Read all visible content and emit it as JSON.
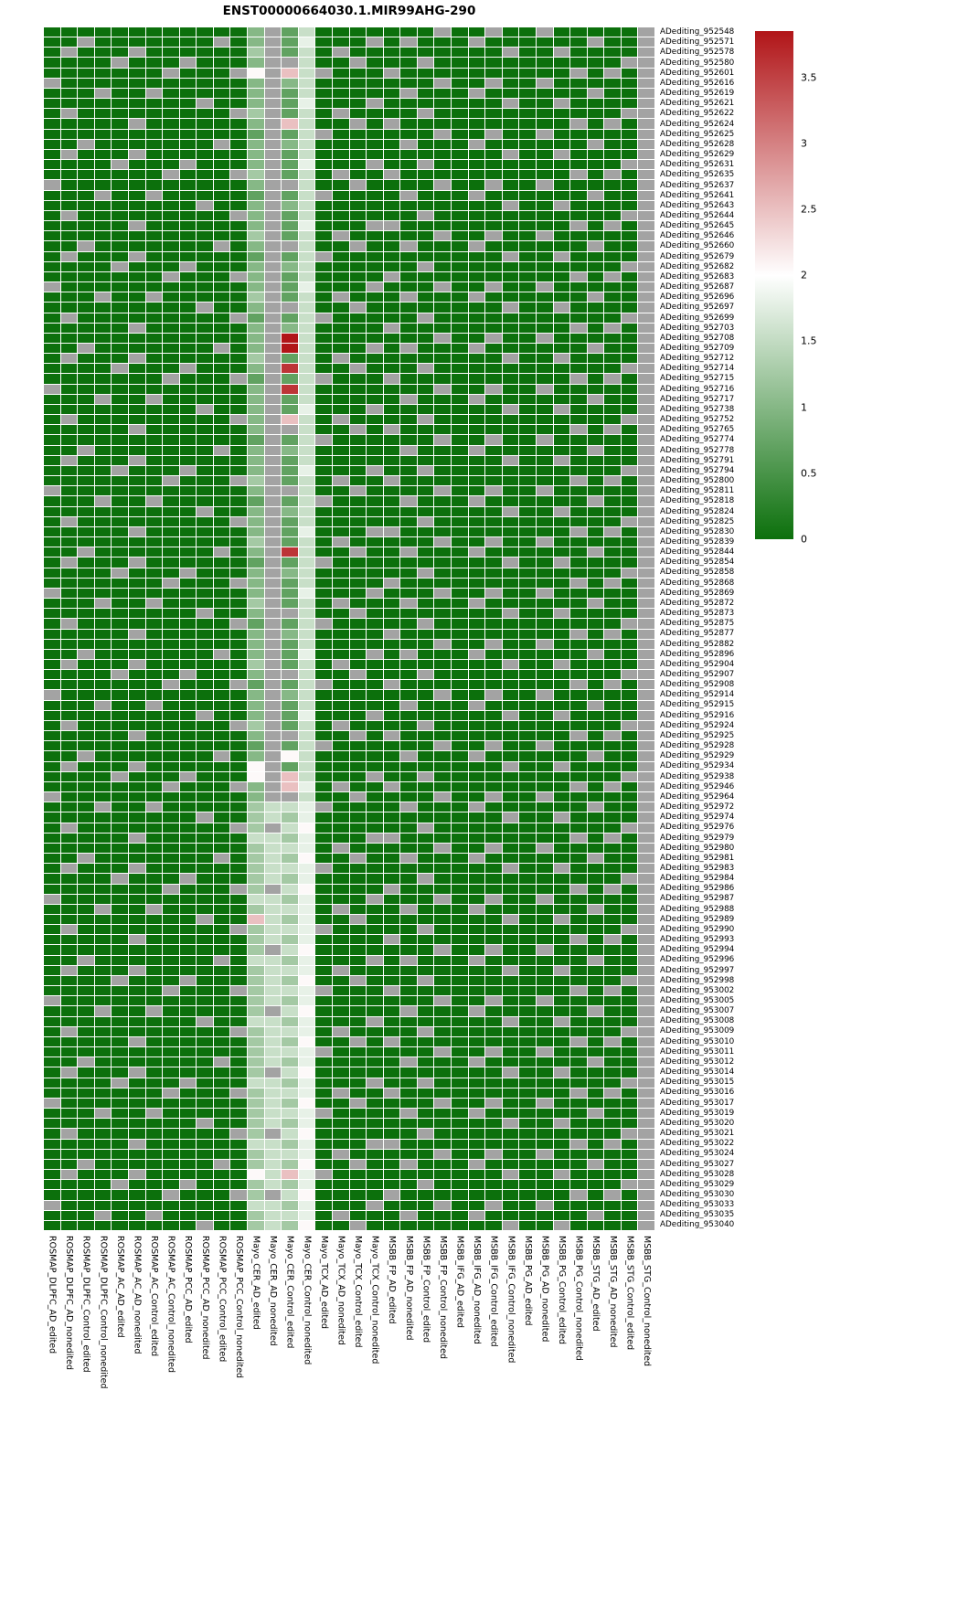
{
  "title": "ENST00000664030.1.MIR99AHG-290",
  "chart_data": {
    "type": "heatmap",
    "title": "ENST00000664030.1.MIR99AHG-290",
    "legend_position": "right",
    "na_color": "#a3a3a3",
    "colorscale": {
      "stops": [
        [
          0,
          "#0c700c"
        ],
        [
          2,
          "#ffffff"
        ],
        [
          3.85,
          "#b11518"
        ]
      ]
    },
    "legend": {
      "min": 0,
      "max": 3.85,
      "ticks": [
        3.5,
        3,
        2.5,
        2,
        1.5,
        1,
        0.5,
        0
      ]
    },
    "value_map": {
      "G": 0,
      "a": 0.7,
      "b": 1.0,
      "c": 1.25,
      "d": 1.55,
      "e": 1.8,
      "w": 2.05,
      "p": 2.5,
      "r": 3.6,
      "s": 3.85,
      "N": null
    },
    "columns": [
      "ROSMAP_DLPFC_AD_edited",
      "ROSMAP_DLPFC_AD_nonedited",
      "ROSMAP_DLPFC_Control_edited",
      "ROSMAP_DLPFC_Control_nonedited",
      "ROSMAP_AC_AD_edited",
      "ROSMAP_AC_AD_nonedited",
      "ROSMAP_AC_Control_edited",
      "ROSMAP_AC_Control_nonedited",
      "ROSMAP_PCC_AD_edited",
      "ROSMAP_PCC_AD_nonedited",
      "ROSMAP_PCC_Control_edited",
      "ROSMAP_PCC_Control_nonedited",
      "Mayo_CER_AD_edited",
      "Mayo_CER_AD_nonedited",
      "Mayo_CER_Control_edited",
      "Mayo_CER_Control_nonedited",
      "Mayo_TCX_AD_edited",
      "Mayo_TCX_AD_nonedited",
      "Mayo_TCX_Control_edited",
      "Mayo_TCX_Control_nonedited",
      "MSBB_FP_AD_edited",
      "MSBB_FP_AD_nonedited",
      "MSBB_FP_Control_edited",
      "MSBB_FP_Control_nonedited",
      "MSBB_IFG_AD_edited",
      "MSBB_IFG_AD_nonedited",
      "MSBB_IFG_Control_edited",
      "MSBB_IFG_Control_nonedited",
      "MSBB_PG_AD_edited",
      "MSBB_PG_AD_nonedited",
      "MSBB_PG_Control_edited",
      "MSBB_PG_Control_nonedited",
      "MSBB_STG_AD_edited",
      "MSBB_STG_AD_nonedited",
      "MSBB_STG_Control_edited",
      "MSBB_STG_Control_nonedited"
    ],
    "rows": [
      "ADediting_952548",
      "ADediting_952571",
      "ADediting_952578",
      "ADediting_952580",
      "ADediting_952601",
      "ADediting_952616",
      "ADediting_952619",
      "ADediting_952621",
      "ADediting_952622",
      "ADediting_952624",
      "ADediting_952625",
      "ADediting_952628",
      "ADediting_952629",
      "ADediting_952631",
      "ADediting_952635",
      "ADediting_952637",
      "ADediting_952641",
      "ADediting_952643",
      "ADediting_952644",
      "ADediting_952645",
      "ADediting_952646",
      "ADediting_952660",
      "ADediting_952679",
      "ADediting_952682",
      "ADediting_952683",
      "ADediting_952687",
      "ADediting_952696",
      "ADediting_952697",
      "ADediting_952699",
      "ADediting_952703",
      "ADediting_952708",
      "ADediting_952709",
      "ADediting_952712",
      "ADediting_952714",
      "ADediting_952715",
      "ADediting_952716",
      "ADediting_952717",
      "ADediting_952738",
      "ADediting_952752",
      "ADediting_952765",
      "ADediting_952774",
      "ADediting_952778",
      "ADediting_952791",
      "ADediting_952794",
      "ADediting_952800",
      "ADediting_952811",
      "ADediting_952818",
      "ADediting_952824",
      "ADediting_952825",
      "ADediting_952830",
      "ADediting_952839",
      "ADediting_952844",
      "ADediting_952854",
      "ADediting_952858",
      "ADediting_952868",
      "ADediting_952869",
      "ADediting_952872",
      "ADediting_952873",
      "ADediting_952875",
      "ADediting_952877",
      "ADediting_952882",
      "ADediting_952896",
      "ADediting_952904",
      "ADediting_952907",
      "ADediting_952908",
      "ADediting_952914",
      "ADediting_952915",
      "ADediting_952916",
      "ADediting_952924",
      "ADediting_952925",
      "ADediting_952928",
      "ADediting_952929",
      "ADediting_952934",
      "ADediting_952938",
      "ADediting_952946",
      "ADediting_952964",
      "ADediting_952972",
      "ADediting_952974",
      "ADediting_952976",
      "ADediting_952979",
      "ADediting_952980",
      "ADediting_952981",
      "ADediting_952983",
      "ADediting_952984",
      "ADediting_952986",
      "ADediting_952987",
      "ADediting_952988",
      "ADediting_952989",
      "ADediting_952990",
      "ADediting_952993",
      "ADediting_952994",
      "ADediting_952996",
      "ADediting_952997",
      "ADediting_952998",
      "ADediting_953002",
      "ADediting_953005",
      "ADediting_953007",
      "ADediting_953008",
      "ADediting_953009",
      "ADediting_953010",
      "ADediting_953011",
      "ADediting_953012",
      "ADediting_953014",
      "ADediting_953015",
      "ADediting_953016",
      "ADediting_953017",
      "ADediting_953019",
      "ADediting_953020",
      "ADediting_953021",
      "ADediting_953022",
      "ADediting_953024",
      "ADediting_953027",
      "ADediting_953028",
      "ADediting_953029",
      "ADediting_953030",
      "ADediting_953033",
      "ADediting_953035",
      "ADediting_953040"
    ],
    "matrix": [
      "GGGGGGGGGGGGbNadGGGGGGGNGGNGGNGGGGGN",
      "GGNGGGGGGGNGbNaeGGGNGNGGGNGGGGGGNGGN",
      "GNGGGNGGGGGGcNadGNGGGGGGGGGNGGNGGGGN",
      "GGGGNGGGNGGGbNNdGGNGGGNGGGGGGGGGGGNN",
      "GGGGGGGNGGGNwNpdNGGGNGGGGGGGGGGNGNGN",
      "NGGGGGGGGGGGbNbdGGGGGGGNGGNGGNGGGGGN",
      "GGGNGGNGGGGGbNadGGGGGNGGGNGGGGGGNGGN",
      "GGGGGGGGGNGGbNaeGGGNGGGGGGGNGGNGGGGN",
      "GNGGGGGGGGGNcNadGNGGGGNGGGGGGGGGGGNN",
      "GGGGGNGGGGGGbNpdGGNGNGGGGGGGGGGNGNGN",
      "GGGGGGGGGGGGaNadNGGGGGGNGGNGGNGGGGGN",
      "GGNGGGGGGGNGbNbdGGGGGNGGGNGGGGGGNGGN",
      "GNGGGNGGGGGGbNadGGGGGGGGGGGNGGNGGGGN",
      "GGGGNGGGNGGGbNaeGGGNGGNGGGGGGGGGGGNN",
      "GGGGGGGNGGGNcNadGNGGNGGGGGGGGGGNGNGN",
      "NGGGGGGGGGGGbNNdGGNGGGGNGGNGGNGGGGGN",
      "GGGNGGNGGGGGaNadNGGGGNGGGNGGGGGGNGGN",
      "GGGGGGGGGNGGbNbdGGGGGGGGGGGNGGNGGGGN",
      "GNGGGGGGGGGNbNadGGGGGGNGGGGGGGGGGGNN",
      "GGGGGNGGGGGGbNaeGGGNNGGGGGGGGGGNGNGN",
      "GGGGGGGGGGGGcNadGNGGGGGNGGNGGNGGGGGN",
      "GGNGGGGGGGNGbNNdGGNGGNGGGNGGGGGGNGGN",
      "GNGGGNGGGGGGaNadNGGGGGGGGGGNGGNGGGGN",
      "GGGGNGGGNGGGbNbdGGGGGGNGGGGGGGGGGGNN",
      "GGGGGGGNGGGNbNadGGGGNGGGGGGGGGGNGNGN",
      "NGGGGGGGGGGGbNaeGGGNGGGNGGNGGNGGGGGN",
      "GGGNGGNGGGGGcNadGNGGGNGGGNGGGGGGNGGN",
      "GGGGGGGGGNGGbNNdGGNGGGGGGGGNGGNGGGGN",
      "GNGGGGGGGGGNaNadNGGGGGNGGGGGGGGGGGNN",
      "GGGGGNGGGGGGbNbdGGGGNGGGGGGGGGGNGNGN",
      "GGGGGGGGGGGGbNsdGGGGGGGNGGNGGNGGGGGN",
      "GGNGGGGGGGNGbNsdGGGNGNGGGNGGGGGGNGGN",
      "GNGGGNGGGGGGcNadGNGGGGGGGGGNGGNGGGGN",
      "GGGGNGGGNGGGbNrdGGNGGGNGGGGGGGGGGGNN",
      "GGGGGGGNGGGNaNadNGGGNGGGGGGGGGGNGNGN",
      "NGGGGGGGGGGGbNrdGGGGGGGNGGNGGNGGGGGN",
      "GGGNGGNGGGGGbNadGGGGGNGGGNGGGGGGNGGN",
      "GGGGGGGGGNGGbNaeGGGNGGGGGGGNGGNGGGGN",
      "GNGGGGGGGGGNbNpdGNGGGGNGGGGGGGGGGGNN",
      "GGGGGNGGGGGGbNNdGGNGNGGGGGGGGGGNGNGN",
      "GGGGGGGGGGGGaNadNGGGGGGNGGNGGNGGGGGN",
      "GGNGGGGGGGNGbNbdGGGGGNGGGNGGGGGGNGGN",
      "GNGGGNGGGGGGbNadGGGGGGGGGGGNGGNGGGGN",
      "GGGGNGGGNGGGbNaeGGGNGGNGGGGGGGGGGGNN",
      "GGGGGGGNGGGNcNadGNGGNGGGGGGGGGGNGNGN",
      "NGGGGGGGGGGGbNNdGGNGGGGNGGNGGNGGGGGN",
      "GGGNGGNGGGGGaNadNGGGGNGGGNGGGGGGNGGN",
      "GGGGGGGGGNGGbNbdGGGGGGGGGGGNGGNGGGGN",
      "GNGGGGGGGGGNbNadGGGGGGNGGGGGGGGGGGNN",
      "GGGGGNGGGGGGbNaeGGGNNGGGGGGGGGGNGNGN",
      "GGGGGGGGGGGGcNadGNGGGGGNGGNGGNGGGGGN",
      "GGNGGGGGGGNGbNrdGGNGGNGGGNGGGGGGNGGN",
      "GNGGGNGGGGGGaNadNGGGGGGGGGGNGGNGGGGN",
      "GGGGNGGGNGGGbNbdGGGGGGNGGGGGGGGGGGNN",
      "GGGGGGGNGGGNbNadGGGGNGGGGGGGGGGNGNGN",
      "NGGGGGGGGGGGbNaeGGGNGGGNGGNGGNGGGGGN",
      "GGGNGGNGGGGGcNadGNGGGNGGGNGGGGGGNGGN",
      "GGGGGGGGGNGGbNNdGGNGGGGGGGGNGGNGGGGN",
      "GNGGGGGGGGGNaNadNGGGGGNGGGGGGGGGGGNN",
      "GGGGGNGGGGGGbNbdGGGGNGGGGGGGGGGNGNGN",
      "GGGGGGGGGGGGbNadGGGGGGGNGGNGGNGGGGGN",
      "GGNGGGGGGGNGbNaeGGGNGNGGGNGGGGGGNGGN",
      "GNGGGNGGGGGGcNadGNGGGGGGGGGNGGNGGGGN",
      "GGGGNGGGNGGGbNNdGGNGGGNGGGGGGGGGGGNN",
      "GGGGGGGNGGGNaNadNGGGNGGGGGGGGGGNGNGN",
      "NGGGGGGGGGGGbNbdGGGGGGGNGGNGGNGGGGGN",
      "GGGNGGNGGGGGbNadGGGGGNGGGNGGGGGGNGGN",
      "GGGGGGGGGNGGbNaeGGGNGGGGGGGNGGNGGGGN",
      "GNGGGGGGGGGNcNadGNGGGGNGGGGGGGGGGGNN",
      "GGGGGNGGGGGGbNNdGGNGNGGGGGGGGGGNGNGN",
      "GGGGGGGGGGGGaNadNGGGGGGNGGNGGNGGGGGN",
      "GGNGGGGGGGNGbNwdGGGGGNGGGNGGGGGGNGGN",
      "GNGGGNGGGGGGwNadGGGGGGGGGGGNGGNGGGGN",
      "GGGGNGGGNGGGwNpdGGGNGGNGGGGGGGGGGGNN",
      "GGGGGGGNGGGNbNpeGNGGNGGGGGGGGGGNGNGN",
      "NGGGGGGGGGGGbNNdGGNGGGGNGGNGGNGGGGGN",
      "GGGNGGNGGGGGcddeNGGGGNGGGNGGGGGGNGGN",
      "GGGGGGGGGNGGcdceGGGGGGGGGGGNGGNGGGGN",
      "GNGGGGGGGGGNcNdwGGGGGGNGGGGGGGGGGGNN",
      "GGGGGNGGGGGGddceGGGNNGGGGGGGGGGNGNGN",
      "GGGGGGGGGGGGcddeGNGGGGGNGGNGGNGGGGGN",
      "GGNGGGGGGGNGcdcwGGNGGNGGGNGGGGGGNGGN",
      "GNGGGNGGGGGGcddeNGGGGGGGGGGNGGNGGGGN",
      "GGGGNGGGNGGGcdceGGGGGGNGGGGGGGGGGGNN",
      "GGGGGGGNGGGNcNdwGGGGNGGGGGGGGGGNGNGN",
      "NGGGGGGGGGGGddceGGGNGGGNGGNGGNGGGGGN",
      "GGGNGGNGGGGGcddeGNGGGNGGGNGGGGGGNGGN",
      "GGGGGGGGGNGGpdceGGNGGGGGGGGNGGNGGGGN",
      "GNGGGGGGGGGNcddeNGGGGGNGGGGGGGGGGGNN",
      "GGGGGNGGGGGGcdceGGGGNGGGGGGGGGGNGNGN",
      "GGGGGGGGGGGGcNdwGGGGGGGNGGNGGNGGGGGN",
      "GGNGGGGGGGNGddceGGGNGNGGGNGGGGGGNGGN",
      "GNGGGNGGGGGGcddeGNGGGGGGGGGNGGNGGGGN",
      "GGGGNGGGNGGGcdcwGGNGGGNGGGGGGGGGGGNN",
      "GGGGGGGNGGGNcddeNGGGNGGGGGGGGGGNGNGN",
      "NGGGGGGGGGGGcdceGGGGGGGNGGNGGNGGGGGN",
      "GGGNGGNGGGGGcNdwGGGGGNGGGNGGGGGGNGGN",
      "GGGGGGGGGNGGddceGGGNGGGGGGGNGGNGGGGN",
      "GNGGGGGGGGGNcddeGNGGGGNGGGGGGGGGGGNN",
      "GGGGGNGGGGGGcdcwGGNGNGGGGGGGGGGNGNGN",
      "GGGGGGGGGGGGcddeNGGGGGGNGGNGGNGGGGGN",
      "GGNGGGGGGGNGcdceGGGGGNGGGNGGGGGGNGGN",
      "GNGGGNGGGGGGcNdwGGGGGGGGGGGNGGNGGGGN",
      "GGGGNGGGNGGGddceGGGNGGNGGGGGGGGGGGNN",
      "GGGGGGGNGGGNcddeGNGGNGGGGGGGGGGNGNGN",
      "NGGGGGGGGGGGcdcwGGNGGGGNGGNGGNGGGGGN",
      "GGGNGGNGGGGGcddeNGGGGNGGGNGGGGGGNGGN",
      "GGGGGGGGGNGGcdceGGGGGGGGGGGNGGNGGGGN",
      "GNGGGGGGGGGNcNdwGGGGGGNGGGGGGGGGGGNN",
      "GGGGGNGGGGGGddceGGGNNGGGGGGGGGGNGNGN",
      "GGGGGGGGGGGGcddeGNGGGGGNGGNGGNGGGGGN",
      "GGNGGGGGGGNGcdcwGGNGGNGGGNGGGGGGNGGN",
      "GNGGGNGGGGGGwdpeNGGGGGGGGGGNGGNGGGGN",
      "GGGGNGGGNGGGcdceGGGGGGNGGGGGGGGGGGNN",
      "GGGGGGGNGGGNcNdwGGGGNGGGGGGGGGGNGNGN",
      "NGGGGGGGGGGGddceGGGNGGGNGGNGGNGGGGGN",
      "GGGNGGNGGGGGcddeGNGGGNGGGNGGGGGGNGGN",
      "GGGGGGGGGNGGcdcwGGNGGGGGGGGNGGNGGGGN"
    ]
  }
}
